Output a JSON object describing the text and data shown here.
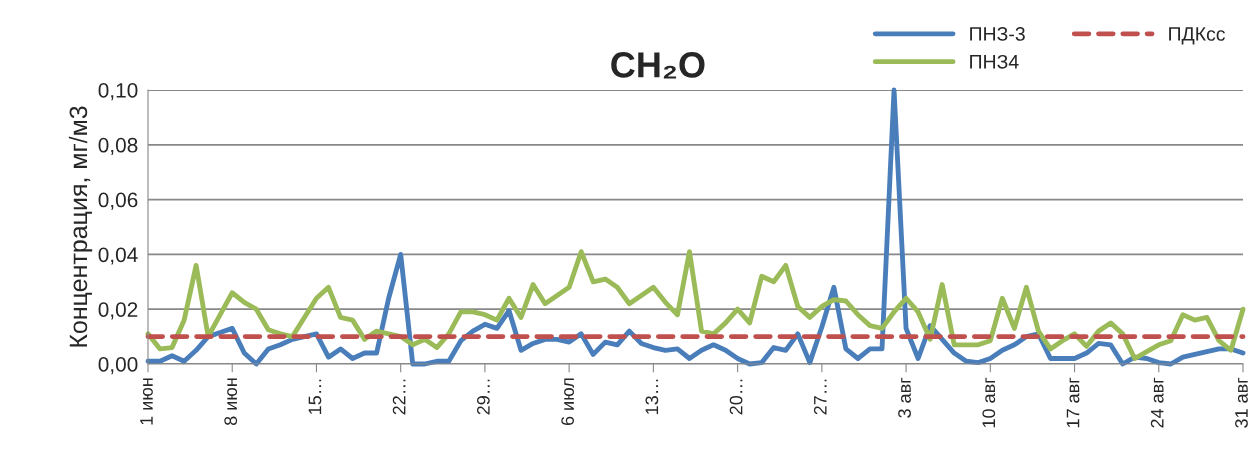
{
  "chart_data": {
    "type": "line",
    "title": "CH₂O",
    "ylabel": "Концентрация, мг/м3",
    "categories": [
      "1 июн",
      null,
      null,
      null,
      null,
      null,
      null,
      "8 июн",
      null,
      null,
      null,
      null,
      null,
      null,
      "15…",
      null,
      null,
      null,
      null,
      null,
      null,
      "22…",
      null,
      null,
      null,
      null,
      null,
      null,
      "29…",
      null,
      null,
      null,
      null,
      null,
      null,
      "6 июл",
      null,
      null,
      null,
      null,
      null,
      null,
      "13…",
      null,
      null,
      null,
      null,
      null,
      null,
      "20…",
      null,
      null,
      null,
      null,
      null,
      null,
      "27…",
      null,
      null,
      null,
      null,
      null,
      null,
      "3 авг",
      null,
      null,
      null,
      null,
      null,
      null,
      "10 авг",
      null,
      null,
      null,
      null,
      null,
      null,
      "17 авг",
      null,
      null,
      null,
      null,
      null,
      null,
      "24 авг",
      null,
      null,
      null,
      null,
      null,
      null,
      "31 авг"
    ],
    "series": [
      {
        "name": "ПНЗ-3",
        "color": "#4a7ebb",
        "values": [
          0.001,
          0.001,
          0.003,
          0.001,
          0.005,
          0.01,
          0.0115,
          0.013,
          0.004,
          0.0,
          0.0055,
          0.007,
          0.009,
          0.01,
          0.011,
          0.0025,
          0.0055,
          0.002,
          0.004,
          0.004,
          0.024,
          0.04,
          0.0,
          0.0,
          0.001,
          0.001,
          0.0085,
          0.012,
          0.0145,
          0.013,
          0.0195,
          0.005,
          0.0075,
          0.009,
          0.009,
          0.008,
          0.011,
          0.0035,
          0.008,
          0.007,
          0.012,
          0.0075,
          0.006,
          0.005,
          0.0055,
          0.002,
          0.005,
          0.007,
          0.005,
          0.002,
          0.0,
          0.0005,
          0.006,
          0.005,
          0.011,
          0.0005,
          0.0135,
          0.028,
          0.0055,
          0.002,
          0.0055,
          0.0055,
          0.1,
          0.013,
          0.002,
          0.014,
          0.009,
          0.004,
          0.001,
          0.0005,
          0.002,
          0.005,
          0.007,
          0.01,
          0.011,
          0.002,
          0.002,
          0.002,
          0.004,
          0.0075,
          0.007,
          0.0,
          0.0025,
          0.002,
          0.0005,
          0.0,
          0.0025,
          0.0035,
          0.0045,
          0.0055,
          0.0055,
          0.004
        ]
      },
      {
        "name": "ПНЗ4",
        "color": "#9bbb59",
        "values": [
          0.011,
          0.0055,
          0.006,
          0.016,
          0.036,
          0.01,
          0.018,
          0.026,
          0.0225,
          0.02,
          0.0125,
          0.011,
          0.01,
          0.017,
          0.024,
          0.028,
          0.017,
          0.016,
          0.009,
          0.012,
          0.011,
          0.01,
          0.007,
          0.009,
          0.006,
          0.011,
          0.019,
          0.019,
          0.018,
          0.016,
          0.024,
          0.017,
          0.029,
          0.022,
          0.025,
          0.028,
          0.041,
          0.03,
          0.031,
          0.028,
          0.022,
          0.025,
          0.028,
          0.0225,
          0.018,
          0.041,
          0.012,
          0.011,
          0.015,
          0.02,
          0.015,
          0.032,
          0.03,
          0.036,
          0.021,
          0.017,
          0.021,
          0.0235,
          0.023,
          0.018,
          0.014,
          0.013,
          0.019,
          0.024,
          0.019,
          0.009,
          0.029,
          0.007,
          0.007,
          0.007,
          0.0085,
          0.024,
          0.013,
          0.028,
          0.012,
          0.0055,
          0.0085,
          0.011,
          0.0065,
          0.012,
          0.015,
          0.011,
          0.002,
          0.0045,
          0.007,
          0.0085,
          0.018,
          0.016,
          0.017,
          0.0085,
          0.005,
          0.02
        ]
      },
      {
        "name": "ПДКсс",
        "color": "#c0504d",
        "line_style": "dashed",
        "values": [
          0.01,
          0.01,
          0.01,
          0.01,
          0.01,
          0.01,
          0.01,
          0.01,
          0.01,
          0.01,
          0.01,
          0.01,
          0.01,
          0.01,
          0.01,
          0.01,
          0.01,
          0.01,
          0.01,
          0.01,
          0.01,
          0.01,
          0.01,
          0.01,
          0.01,
          0.01,
          0.01,
          0.01,
          0.01,
          0.01,
          0.01,
          0.01,
          0.01,
          0.01,
          0.01,
          0.01,
          0.01,
          0.01,
          0.01,
          0.01,
          0.01,
          0.01,
          0.01,
          0.01,
          0.01,
          0.01,
          0.01,
          0.01,
          0.01,
          0.01,
          0.01,
          0.01,
          0.01,
          0.01,
          0.01,
          0.01,
          0.01,
          0.01,
          0.01,
          0.01,
          0.01,
          0.01,
          0.01,
          0.01,
          0.01,
          0.01,
          0.01,
          0.01,
          0.01,
          0.01,
          0.01,
          0.01,
          0.01,
          0.01,
          0.01,
          0.01,
          0.01,
          0.01,
          0.01,
          0.01,
          0.01,
          0.01,
          0.01,
          0.01,
          0.01,
          0.01,
          0.01,
          0.01,
          0.01,
          0.01,
          0.01,
          0.01
        ]
      }
    ],
    "ylim": [
      0,
      0.1
    ],
    "yticks": [
      {
        "value": 0,
        "label": "0,00"
      },
      {
        "value": 0.02,
        "label": "0,02"
      },
      {
        "value": 0.04,
        "label": "0,04"
      },
      {
        "value": 0.06,
        "label": "0,06"
      },
      {
        "value": 0.08,
        "label": "0,08"
      },
      {
        "value": 0.1,
        "label": "0,10"
      }
    ],
    "grid": "y",
    "legend": "top right",
    "marker": "none",
    "line_style": "solid"
  }
}
